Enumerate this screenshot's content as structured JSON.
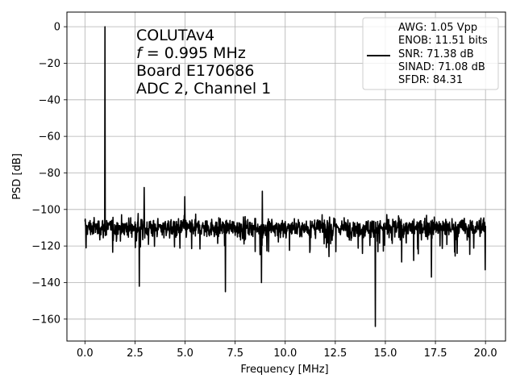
{
  "chart_data": {
    "type": "line",
    "xlabel": "Frequency [MHz]",
    "ylabel": "PSD [dB]",
    "xlim": [
      -0.9,
      21.0
    ],
    "ylim": [
      -172,
      8
    ],
    "xticks": [
      0.0,
      2.5,
      5.0,
      7.5,
      10.0,
      12.5,
      15.0,
      17.5,
      20.0
    ],
    "xtick_labels": [
      "0.0",
      "2.5",
      "5.0",
      "7.5",
      "10.0",
      "12.5",
      "15.0",
      "17.5",
      "20.0"
    ],
    "yticks": [
      0,
      -20,
      -40,
      -60,
      -80,
      -100,
      -120,
      -140,
      -160
    ],
    "ytick_labels": [
      "0",
      "−20",
      "−40",
      "−60",
      "−80",
      "−100",
      "−120",
      "−140",
      "−160"
    ],
    "grid": true,
    "annotation": {
      "line1": "COLUTAv4",
      "line2_var": "f",
      "line2_rest": " = 0.995 MHz",
      "line3": "Board E170686",
      "line4": "ADC 2, Channel 1"
    },
    "legend": {
      "placement": "top-right",
      "entries": [
        "AWG: 1.05 Vpp",
        "ENOB: 11.51 bits",
        "SNR: 71.38 dB",
        "SINAD: 71.08 dB",
        "SFDR: 84.31"
      ]
    },
    "series": [
      {
        "color": "#000000",
        "noise_floor": {
          "x_range": [
            0.0,
            20.0
          ],
          "typical_db": -110,
          "band_db": [
            -123,
            -100
          ]
        },
        "peaks": [
          {
            "x": 0.995,
            "y": 0
          },
          {
            "x": 2.95,
            "y": -88
          },
          {
            "x": 4.98,
            "y": -93
          },
          {
            "x": 8.86,
            "y": -90
          }
        ],
        "dips": [
          {
            "x": 0.05,
            "y": -121
          },
          {
            "x": 2.72,
            "y": -142
          },
          {
            "x": 7.02,
            "y": -145
          },
          {
            "x": 8.82,
            "y": -140
          },
          {
            "x": 14.5,
            "y": -164
          },
          {
            "x": 17.3,
            "y": -137
          },
          {
            "x": 19.98,
            "y": -133
          }
        ]
      }
    ]
  }
}
